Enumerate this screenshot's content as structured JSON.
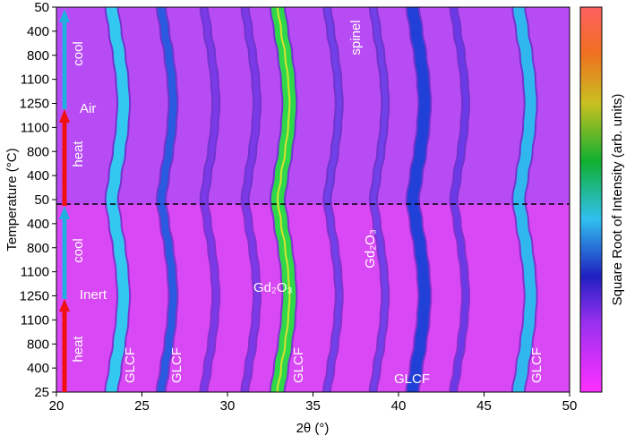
{
  "chart_data": {
    "type": "heatmap",
    "x_label": "2θ (°)",
    "y_label": "Temperature (°C)",
    "colorbar_label": "Square Root of Intensity (arb. units)",
    "xlim": [
      20,
      50
    ],
    "xticks": [
      20,
      25,
      30,
      35,
      40,
      45,
      50
    ],
    "y_categories": [
      "25",
      "400",
      "800",
      "1100",
      "1250",
      "1100",
      "800",
      "400",
      "50",
      "400",
      "800",
      "1100",
      "1250",
      "1100",
      "800",
      "400",
      "50"
    ],
    "peaks": [
      {
        "x": 23.2,
        "color": "#33c8f0",
        "width": 3
      },
      {
        "x": 26.1,
        "color": "#2a5ae0",
        "width": 2
      },
      {
        "x": 28.6,
        "color": "#7a3ae8",
        "width": 1.5
      },
      {
        "x": 31.0,
        "color": "#7a3ae8",
        "width": 1.5
      },
      {
        "x": 32.9,
        "color": "#2fd84a",
        "width": 3.5
      },
      {
        "x": 35.8,
        "color": "#7040e8",
        "width": 1.5
      },
      {
        "x": 38.5,
        "color": "#7040e8",
        "width": 1.5
      },
      {
        "x": 40.8,
        "color": "#2040d8",
        "width": 3
      },
      {
        "x": 43.2,
        "color": "#6a3ae8",
        "width": 1.5
      },
      {
        "x": 47.0,
        "color": "#30b8ee",
        "width": 3
      }
    ],
    "annotations": {
      "cool_top": "cool",
      "heat_top": "heat",
      "cool_bottom": "cool",
      "heat_bottom": "heat",
      "air": "Air",
      "inert": "Inert",
      "spinel": "spinel",
      "gd2o3_left": "Gd₂O₃",
      "gd2o3_right": "Gd₂O₃",
      "glcf_1": "GLCF",
      "glcf_2": "GLCF",
      "glcf_3": "GLCF",
      "glcf_4": "GLCF",
      "glcf_5": "GLCF"
    }
  }
}
